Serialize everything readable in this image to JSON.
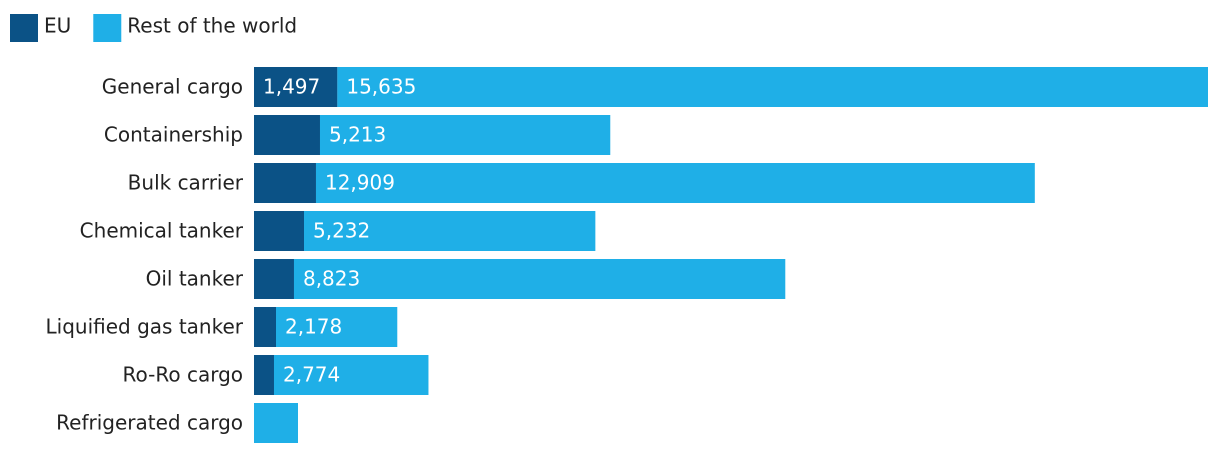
{
  "chart_data": {
    "type": "stacked-horizontal-bar",
    "categories": [
      "General cargo",
      "Containership",
      "Bulk carrier",
      "Chemical tanker",
      "Oil tanker",
      "Liquified gas tanker",
      "Ro-Ro cargo",
      "Refrigerated cargo"
    ],
    "series": [
      {
        "name": "EU",
        "color": "#0b5286",
        "values": [
          1497,
          1185,
          1113,
          898,
          718,
          395,
          359,
          0
        ],
        "value_labels": [
          "1,497",
          null,
          null,
          null,
          null,
          null,
          null,
          null
        ]
      },
      {
        "name": "Rest of the world",
        "color": "#1fafe7",
        "values": [
          15635,
          5213,
          12909,
          5232,
          8823,
          2178,
          2774,
          790
        ],
        "value_labels": [
          "15,635",
          "5,213",
          "12,909",
          "5,232",
          "8,823",
          "2,178",
          "2,774",
          null
        ]
      }
    ],
    "legend": "top-left"
  }
}
